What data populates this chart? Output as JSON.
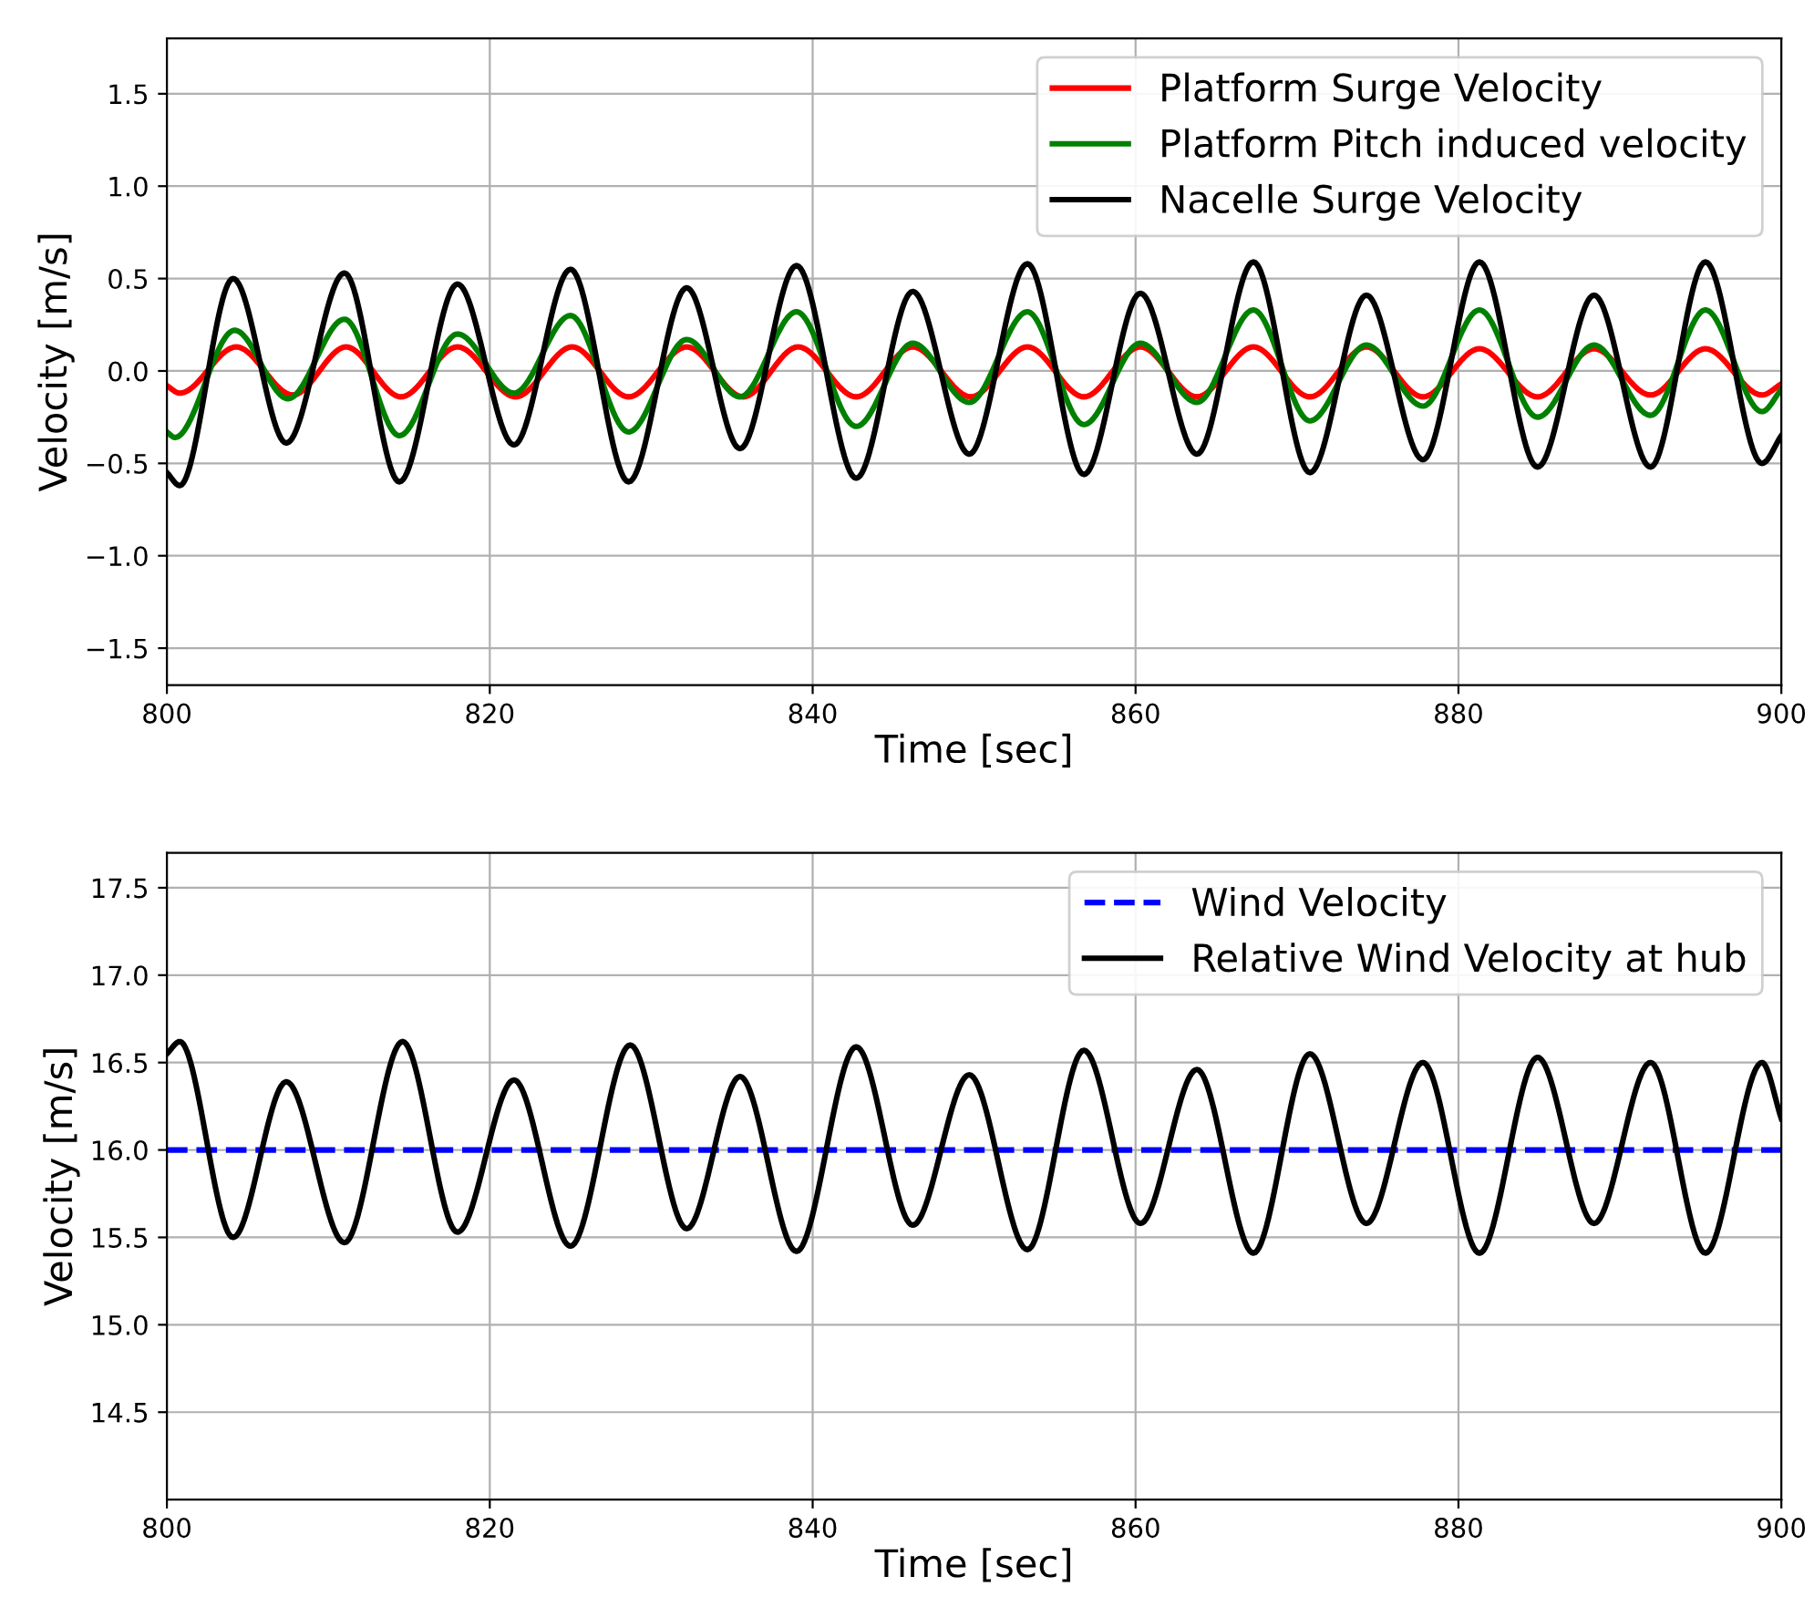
{
  "chart_data": [
    {
      "type": "line",
      "xlabel": "Time [sec]",
      "ylabel": "Velocity [m/s]",
      "xlim": [
        800,
        900
      ],
      "xticks": [
        800,
        820,
        840,
        860,
        880,
        900
      ],
      "ylim": [
        -1.7,
        1.8
      ],
      "yticks": [
        {
          "value": -1.5,
          "label": "−1.5"
        },
        {
          "value": -1.0,
          "label": "−1.0"
        },
        {
          "value": -0.5,
          "label": "−0.5"
        },
        {
          "value": 0,
          "label": "0.0"
        },
        {
          "value": 0.5,
          "label": "0.5"
        },
        {
          "value": 1,
          "label": "1.0"
        },
        {
          "value": 1.5,
          "label": "1.5"
        }
      ],
      "grid": true,
      "legend": "top right",
      "series": [
        {
          "name": "Platform Surge Velocity",
          "color": "#ff0000",
          "line_style": "solid",
          "x": [
            800,
            800.8,
            804.3,
            807.8,
            811.1,
            814.5,
            818.0,
            821.6,
            825.1,
            828.6,
            832.2,
            835.7,
            839.1,
            842.7,
            846.2,
            849.8,
            853.3,
            856.8,
            860.3,
            863.8,
            867.3,
            870.8,
            874.3,
            877.8,
            881.3,
            884.9,
            888.4,
            891.9,
            895.3,
            898.8,
            900
          ],
          "values": [
            -0.08,
            -0.12,
            0.13,
            -0.13,
            0.13,
            -0.14,
            0.13,
            -0.14,
            0.13,
            -0.14,
            0.13,
            -0.14,
            0.13,
            -0.14,
            0.13,
            -0.14,
            0.13,
            -0.14,
            0.13,
            -0.14,
            0.13,
            -0.14,
            0.13,
            -0.14,
            0.12,
            -0.14,
            0.12,
            -0.13,
            0.12,
            -0.13,
            -0.07
          ]
        },
        {
          "name": "Platform Pitch induced velocity",
          "color": "#008000",
          "line_style": "solid",
          "x": [
            800,
            800.5,
            804.2,
            807.5,
            811.0,
            814.4,
            818.0,
            821.5,
            825.0,
            828.6,
            832.2,
            835.5,
            839.0,
            842.7,
            846.2,
            849.7,
            853.3,
            856.8,
            860.3,
            863.8,
            867.3,
            870.8,
            874.3,
            877.8,
            881.3,
            884.9,
            888.4,
            891.9,
            895.3,
            898.8,
            900
          ],
          "values": [
            -0.33,
            -0.36,
            0.22,
            -0.15,
            0.28,
            -0.35,
            0.2,
            -0.12,
            0.3,
            -0.33,
            0.17,
            -0.14,
            0.32,
            -0.3,
            0.15,
            -0.17,
            0.32,
            -0.29,
            0.15,
            -0.17,
            0.33,
            -0.27,
            0.14,
            -0.19,
            0.33,
            -0.25,
            0.14,
            -0.24,
            0.33,
            -0.22,
            -0.1
          ]
        },
        {
          "name": "Nacelle Surge Velocity",
          "color": "#000000",
          "line_style": "solid",
          "x": [
            800,
            800.8,
            804.1,
            807.4,
            811.0,
            814.4,
            818.0,
            821.5,
            825.0,
            828.6,
            832.2,
            835.5,
            839.0,
            842.7,
            846.2,
            849.7,
            853.3,
            856.8,
            860.3,
            863.8,
            867.3,
            870.8,
            874.3,
            877.8,
            881.3,
            884.9,
            888.4,
            891.9,
            895.3,
            898.8,
            900
          ],
          "values": [
            -0.55,
            -0.62,
            0.5,
            -0.39,
            0.53,
            -0.6,
            0.47,
            -0.4,
            0.55,
            -0.6,
            0.45,
            -0.42,
            0.57,
            -0.58,
            0.43,
            -0.45,
            0.58,
            -0.56,
            0.42,
            -0.45,
            0.59,
            -0.55,
            0.41,
            -0.48,
            0.59,
            -0.52,
            0.41,
            -0.52,
            0.59,
            -0.5,
            -0.35
          ]
        }
      ]
    },
    {
      "type": "line",
      "xlabel": "Time [sec]",
      "ylabel": "Velocity [m/s]",
      "xlim": [
        800,
        900
      ],
      "xticks": [
        800,
        820,
        840,
        860,
        880,
        900
      ],
      "ylim": [
        14.0,
        17.7
      ],
      "yticks": [
        14.5,
        {
          "value": 15,
          "label": "15.0"
        },
        15.5,
        {
          "value": 16,
          "label": "16.0"
        },
        16.5,
        {
          "value": 17,
          "label": "17.0"
        },
        17.5
      ],
      "grid": true,
      "legend": "top right",
      "series": [
        {
          "name": "Wind Velocity",
          "color": "#0000ff",
          "line_style": "dashed",
          "x": [
            800,
            900
          ],
          "values": [
            16.0,
            16.0
          ]
        },
        {
          "name": "Relative Wind Velocity at hub",
          "color": "#000000",
          "line_style": "solid",
          "x": [
            800,
            800.8,
            804.1,
            807.4,
            811.0,
            814.6,
            818.0,
            821.5,
            825.0,
            828.7,
            832.2,
            835.5,
            839.0,
            842.7,
            846.2,
            849.7,
            853.3,
            856.8,
            860.3,
            863.8,
            867.3,
            870.8,
            874.3,
            877.8,
            881.3,
            884.9,
            888.4,
            891.9,
            895.3,
            898.8,
            900
          ],
          "values": [
            16.55,
            16.62,
            15.5,
            16.39,
            15.47,
            16.62,
            15.53,
            16.4,
            15.45,
            16.6,
            15.55,
            16.42,
            15.42,
            16.59,
            15.57,
            16.43,
            15.43,
            16.57,
            15.58,
            16.46,
            15.41,
            16.55,
            15.58,
            16.5,
            15.41,
            16.53,
            15.58,
            16.5,
            15.41,
            16.5,
            16.18
          ]
        }
      ]
    }
  ]
}
